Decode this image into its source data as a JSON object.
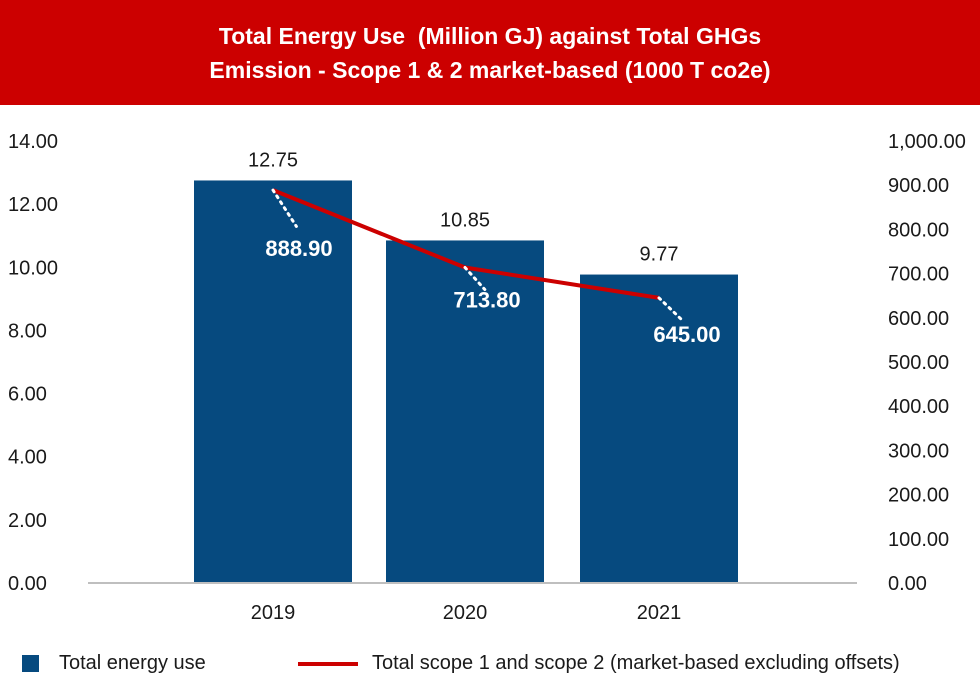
{
  "chart_data": {
    "type": "bar",
    "title_lines": [
      "Total Energy Use  (Million GJ) against Total GHGs",
      "Emission - Scope 1 & 2 market-based (1000 T co2e)"
    ],
    "categories": [
      "2019",
      "2020",
      "2021"
    ],
    "series": [
      {
        "name": "Total energy use",
        "type": "bar",
        "axis": "left",
        "color": "#064a7f",
        "values": [
          12.75,
          10.85,
          9.77
        ],
        "labels": [
          "12.75",
          "10.85",
          "9.77"
        ]
      },
      {
        "name": "Total scope 1 and scope 2 (market-based excluding offsets)",
        "type": "line",
        "axis": "right",
        "color": "#cc0000",
        "values": [
          888.9,
          713.8,
          645.0
        ],
        "labels": [
          "888.90",
          "713.80",
          "645.00"
        ]
      }
    ],
    "y_left": {
      "range": [
        0,
        14
      ],
      "ticks": [
        "0.00",
        "2.00",
        "4.00",
        "6.00",
        "8.00",
        "10.00",
        "12.00",
        "14.00"
      ]
    },
    "y_right": {
      "range": [
        0,
        1000
      ],
      "ticks": [
        "0.00",
        "100.00",
        "200.00",
        "300.00",
        "400.00",
        "500.00",
        "600.00",
        "700.00",
        "800.00",
        "900.00",
        "1,000.00"
      ]
    },
    "grid": false,
    "legend": "bottom",
    "colors": {
      "title_background": "#cc0000",
      "bar": "#064a7f",
      "line": "#cc0000",
      "text": "#1a1a1a",
      "axis": "#bfbfbf"
    }
  }
}
